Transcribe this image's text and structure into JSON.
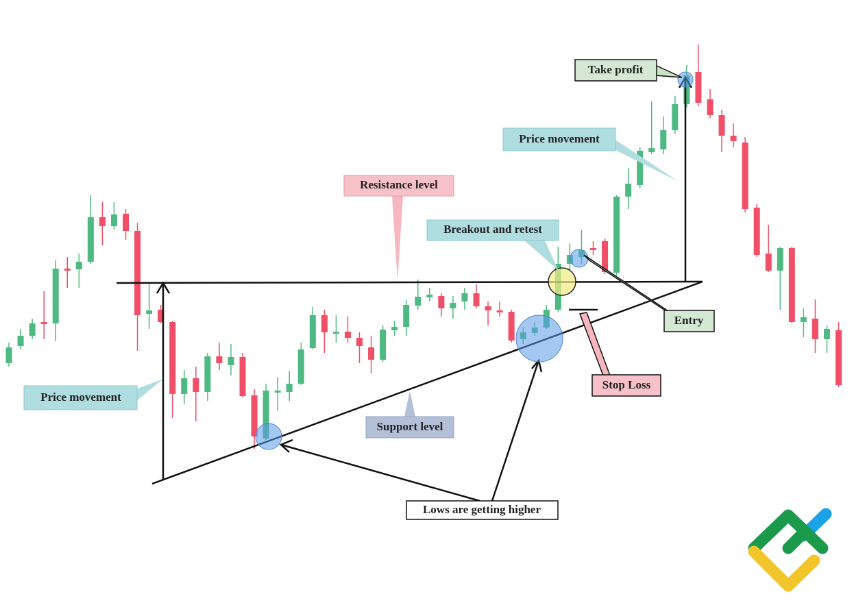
{
  "chart_data": {
    "type": "candlestick",
    "ylim": [
      0,
      900
    ],
    "up_color": "#4fb983",
    "down_color": "#f04f67",
    "open": [
      370,
      395,
      410,
      430,
      428,
      508,
      507,
      518,
      583,
      570,
      588,
      563,
      442,
      448,
      430,
      325,
      348,
      328,
      380,
      367,
      379,
      323,
      260,
      327,
      328,
      340,
      392,
      440,
      413,
      416,
      407,
      393,
      375,
      418,
      423,
      454,
      466,
      468,
      450,
      460,
      472,
      453,
      447,
      445,
      405,
      414,
      422,
      448,
      515,
      525,
      538,
      548,
      502,
      613,
      630,
      678,
      682,
      710,
      748,
      795,
      755,
      732,
      702,
      692,
      597,
      530,
      505,
      538,
      430,
      435,
      405,
      418
    ],
    "high": [
      400,
      420,
      435,
      475,
      520,
      525,
      530,
      615,
      605,
      605,
      595,
      575,
      488,
      455,
      432,
      360,
      365,
      385,
      400,
      398,
      385,
      332,
      340,
      350,
      358,
      400,
      452,
      448,
      440,
      438,
      415,
      410,
      425,
      432,
      462,
      492,
      480,
      472,
      468,
      480,
      485,
      460,
      460,
      448,
      422,
      430,
      455,
      540,
      545,
      565,
      548,
      552,
      615,
      655,
      685,
      752,
      730,
      760,
      805,
      835,
      770,
      740,
      720,
      700,
      602,
      572,
      540,
      540,
      450,
      463,
      425,
      430
    ],
    "low": [
      365,
      390,
      405,
      405,
      402,
      480,
      480,
      515,
      542,
      565,
      550,
      388,
      420,
      428,
      290,
      310,
      285,
      315,
      360,
      352,
      320,
      245,
      258,
      300,
      315,
      338,
      390,
      385,
      400,
      400,
      370,
      355,
      372,
      410,
      410,
      448,
      460,
      438,
      435,
      448,
      450,
      425,
      438,
      400,
      398,
      410,
      420,
      445,
      505,
      515,
      528,
      500,
      498,
      595,
      625,
      675,
      675,
      705,
      743,
      745,
      728,
      678,
      685,
      590,
      525,
      503,
      448,
      428,
      408,
      385,
      385,
      335
    ],
    "close": [
      393,
      410,
      428,
      427,
      508,
      505,
      518,
      583,
      570,
      587,
      563,
      440,
      447,
      430,
      325,
      348,
      328,
      380,
      370,
      379,
      322,
      263,
      330,
      330,
      340,
      390,
      440,
      415,
      416,
      407,
      395,
      375,
      419,
      423,
      455,
      467,
      470,
      450,
      458,
      472,
      453,
      447,
      444,
      403,
      415,
      422,
      448,
      515,
      528,
      535,
      535,
      503,
      613,
      632,
      680,
      684,
      710,
      748,
      790,
      750,
      732,
      702,
      694,
      595,
      528,
      505,
      538,
      430,
      437,
      405,
      420,
      338
    ],
    "annotations": [
      "Take profit",
      "Price movement",
      "Resistance level",
      "Breakout and retest",
      "Entry",
      "Stop Loss",
      "Price movement",
      "Support level",
      "Lows are getting higher"
    ]
  }
}
